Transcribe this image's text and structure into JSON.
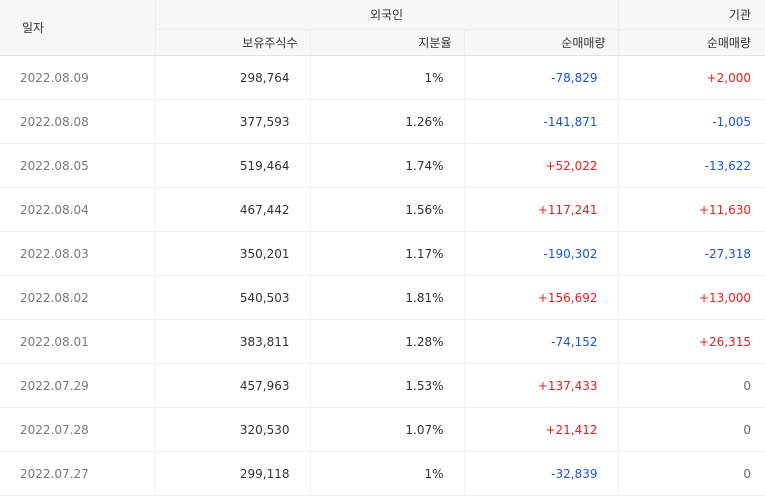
{
  "header": {
    "date": "일자",
    "foreign": "외국인",
    "institution": "기관",
    "holdings": "보유주식수",
    "share": "지분율",
    "foreign_net": "순매매량",
    "institution_net": "순매매량"
  },
  "rows": [
    {
      "date": "2022.08.09",
      "holdings": "298,764",
      "share": "1%",
      "foreign_net": "-78,829",
      "institution_net": "+2,000"
    },
    {
      "date": "2022.08.08",
      "holdings": "377,593",
      "share": "1.26%",
      "foreign_net": "-141,871",
      "institution_net": "-1,005"
    },
    {
      "date": "2022.08.05",
      "holdings": "519,464",
      "share": "1.74%",
      "foreign_net": "+52,022",
      "institution_net": "-13,622"
    },
    {
      "date": "2022.08.04",
      "holdings": "467,442",
      "share": "1.56%",
      "foreign_net": "+117,241",
      "institution_net": "+11,630"
    },
    {
      "date": "2022.08.03",
      "holdings": "350,201",
      "share": "1.17%",
      "foreign_net": "-190,302",
      "institution_net": "-27,318"
    },
    {
      "date": "2022.08.02",
      "holdings": "540,503",
      "share": "1.81%",
      "foreign_net": "+156,692",
      "institution_net": "+13,000"
    },
    {
      "date": "2022.08.01",
      "holdings": "383,811",
      "share": "1.28%",
      "foreign_net": "-74,152",
      "institution_net": "+26,315"
    },
    {
      "date": "2022.07.29",
      "holdings": "457,963",
      "share": "1.53%",
      "foreign_net": "+137,433",
      "institution_net": "0"
    },
    {
      "date": "2022.07.28",
      "holdings": "320,530",
      "share": "1.07%",
      "foreign_net": "+21,412",
      "institution_net": "0"
    },
    {
      "date": "2022.07.27",
      "holdings": "299,118",
      "share": "1%",
      "foreign_net": "-32,839",
      "institution_net": "0"
    }
  ],
  "colors": {
    "positive": "#e02020",
    "negative": "#1a57c5",
    "neutral": "#666666"
  }
}
